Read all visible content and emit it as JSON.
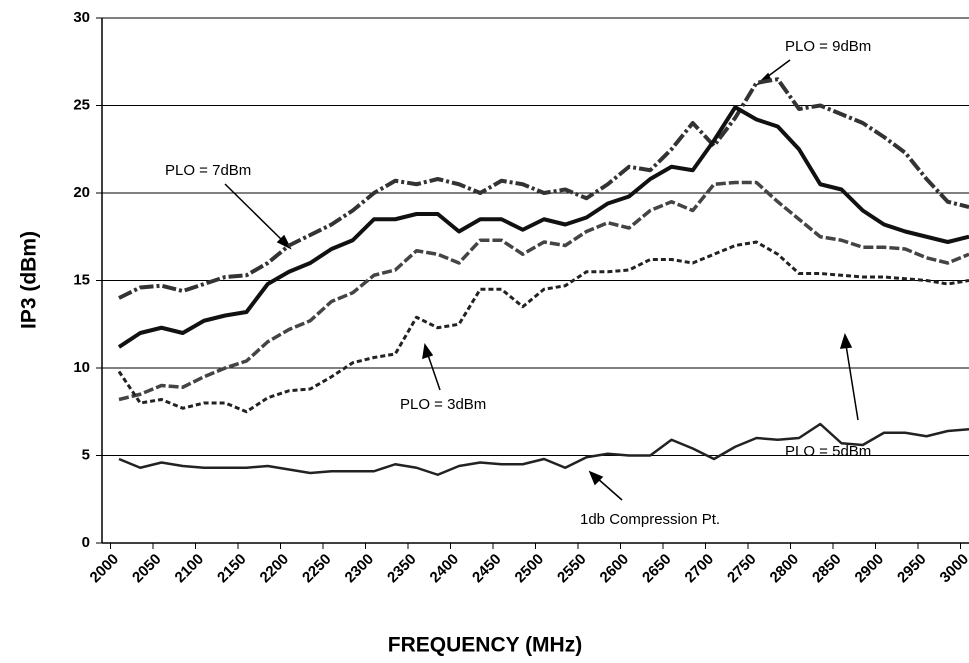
{
  "chart_data": {
    "type": "line",
    "x_label": "FREQUENCY (MHz)",
    "y_label": "IP3 (dBm)",
    "x": [
      2010,
      2035,
      2060,
      2085,
      2110,
      2135,
      2160,
      2185,
      2210,
      2235,
      2260,
      2285,
      2310,
      2335,
      2360,
      2385,
      2410,
      2435,
      2460,
      2485,
      2510,
      2535,
      2560,
      2585,
      2610,
      2635,
      2660,
      2685,
      2710,
      2735,
      2760,
      2785,
      2810,
      2835,
      2860,
      2885,
      2910,
      2935,
      2960,
      2985,
      3010
    ],
    "series": [
      {
        "name": "PLO = 9dBm",
        "color": "#333333",
        "style": "dash-dot",
        "values": [
          14.0,
          14.6,
          14.7,
          14.4,
          14.8,
          15.2,
          15.3,
          16.0,
          17.0,
          17.6,
          18.2,
          19.0,
          20.0,
          20.7,
          20.5,
          20.8,
          20.5,
          20.0,
          20.7,
          20.5,
          20.0,
          20.2,
          19.7,
          20.5,
          21.5,
          21.3,
          22.5,
          24.0,
          22.7,
          24.3,
          26.3,
          26.5,
          24.8,
          25.0,
          24.5,
          24.0,
          23.2,
          22.3,
          20.8,
          19.5,
          19.2
        ]
      },
      {
        "name": "PLO = 7dBm",
        "color": "#111111",
        "style": "solid-bold",
        "values": [
          11.2,
          12.0,
          12.3,
          12.0,
          12.7,
          13.0,
          13.2,
          14.8,
          15.5,
          16.0,
          16.8,
          17.3,
          18.5,
          18.5,
          18.8,
          18.8,
          17.8,
          18.5,
          18.5,
          17.9,
          18.5,
          18.2,
          18.6,
          19.4,
          19.8,
          20.8,
          21.5,
          21.3,
          23.0,
          24.9,
          24.2,
          23.8,
          22.5,
          20.5,
          20.2,
          19.0,
          18.2,
          17.8,
          17.5,
          17.2,
          17.5
        ]
      },
      {
        "name": "PLO = 5dBm",
        "color": "#444444",
        "style": "dashed",
        "values": [
          8.2,
          8.5,
          9.0,
          8.9,
          9.5,
          10.0,
          10.4,
          11.5,
          12.2,
          12.7,
          13.8,
          14.3,
          15.3,
          15.6,
          16.7,
          16.5,
          16.0,
          17.3,
          17.3,
          16.5,
          17.2,
          17.0,
          17.8,
          18.3,
          18.0,
          19.0,
          19.5,
          19.0,
          20.5,
          20.6,
          20.6,
          19.5,
          18.5,
          17.5,
          17.3,
          16.9,
          16.9,
          16.8,
          16.3,
          16.0,
          16.5
        ]
      },
      {
        "name": "PLO = 3dBm",
        "color": "#222222",
        "style": "dotted",
        "values": [
          9.8,
          8.0,
          8.2,
          7.7,
          8.0,
          8.0,
          7.5,
          8.3,
          8.7,
          8.8,
          9.5,
          10.3,
          10.6,
          10.8,
          12.9,
          12.3,
          12.5,
          14.5,
          14.5,
          13.5,
          14.5,
          14.7,
          15.5,
          15.5,
          15.6,
          16.2,
          16.2,
          16.0,
          16.5,
          17.0,
          17.2,
          16.5,
          15.4,
          15.4,
          15.3,
          15.2,
          15.2,
          15.1,
          15.0,
          14.8,
          15.0
        ]
      },
      {
        "name": "1db Compression Pt.",
        "color": "#222222",
        "style": "solid",
        "values": [
          4.8,
          4.3,
          4.6,
          4.4,
          4.3,
          4.3,
          4.3,
          4.4,
          4.2,
          4.0,
          4.1,
          4.1,
          4.1,
          4.5,
          4.3,
          3.9,
          4.4,
          4.6,
          4.5,
          4.5,
          4.8,
          4.3,
          4.9,
          5.1,
          5.0,
          5.0,
          5.9,
          5.4,
          4.8,
          5.5,
          6.0,
          5.9,
          6.0,
          6.8,
          5.7,
          5.6,
          6.3,
          6.3,
          6.1,
          6.4,
          6.5
        ]
      }
    ],
    "xlim": [
      1990,
      3010
    ],
    "xticks": [
      2000,
      2050,
      2100,
      2150,
      2200,
      2250,
      2300,
      2350,
      2400,
      2450,
      2500,
      2550,
      2600,
      2650,
      2700,
      2750,
      2800,
      2850,
      2900,
      2950,
      3000
    ],
    "ylim": [
      0,
      30
    ],
    "yticks": [
      0,
      5,
      10,
      15,
      20,
      25,
      30
    ],
    "grid": true
  }
}
